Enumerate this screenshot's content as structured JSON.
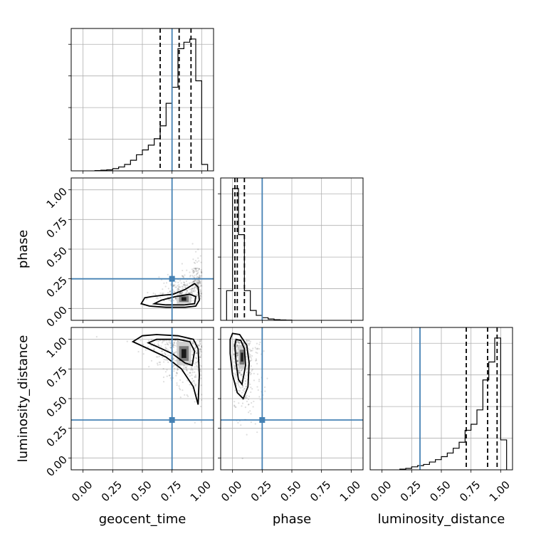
{
  "chart_data": {
    "type": "corner",
    "parameters": [
      "geocent_time",
      "phase",
      "luminosity_distance"
    ],
    "range": [
      -0.1,
      1.1
    ],
    "tick_values": [
      0.0,
      0.25,
      0.5,
      0.75,
      1.0
    ],
    "tick_labels": [
      "0.00",
      "0.25",
      "0.50",
      "0.75",
      "1.00"
    ],
    "truths": {
      "geocent_time": 0.75,
      "phase": 0.25,
      "luminosity_distance": 0.32
    },
    "quantiles": {
      "geocent_time": [
        0.65,
        0.81,
        0.91
      ],
      "phase": [
        0.02,
        0.04,
        0.1
      ],
      "luminosity_distance": [
        0.71,
        0.89,
        0.97
      ]
    },
    "histograms": {
      "geocent_time": {
        "bin_edges": [
          0.1,
          0.15,
          0.2,
          0.25,
          0.3,
          0.35,
          0.4,
          0.45,
          0.5,
          0.55,
          0.6,
          0.65,
          0.7,
          0.75,
          0.8,
          0.85,
          0.9,
          0.95,
          1.0,
          1.05
        ],
        "counts": [
          0.1,
          0.2,
          0.3,
          0.7,
          1.2,
          2.0,
          3.3,
          5.0,
          6.5,
          8.0,
          10.0,
          14.0,
          21.0,
          26.0,
          38.0,
          40.0,
          41.0,
          28.0,
          2.0
        ]
      },
      "phase": {
        "bin_edges": [
          -0.05,
          0.0,
          0.05,
          0.1,
          0.15,
          0.2,
          0.25,
          0.3,
          0.35,
          0.4,
          0.45,
          0.5
        ],
        "counts": [
          9.0,
          40.0,
          26.0,
          9.0,
          3.0,
          1.5,
          0.8,
          0.4,
          0.2,
          0.1,
          0.05
        ]
      },
      "luminosity_distance": {
        "bin_edges": [
          0.15,
          0.2,
          0.25,
          0.3,
          0.35,
          0.4,
          0.45,
          0.5,
          0.55,
          0.6,
          0.65,
          0.7,
          0.75,
          0.8,
          0.85,
          0.9,
          0.95,
          1.0,
          1.05
        ],
        "counts": [
          0.5,
          1.2,
          2.5,
          3.5,
          4.5,
          6.5,
          8.5,
          11.0,
          14.0,
          18.0,
          23.0,
          33.0,
          38.0,
          50.0,
          75.0,
          90.0,
          110.0,
          25.0
        ]
      }
    },
    "joint": {
      "phase_vs_geocent_time": {
        "sample_center": [
          0.85,
          0.08
        ],
        "contours": [
          [
            [
              0.49,
              0.04
            ],
            [
              0.52,
              0.09
            ],
            [
              0.58,
              0.1
            ],
            [
              0.66,
              0.11
            ],
            [
              0.76,
              0.12
            ],
            [
              0.86,
              0.16
            ],
            [
              0.94,
              0.21
            ],
            [
              0.97,
              0.18
            ],
            [
              0.98,
              0.07
            ],
            [
              0.95,
              0.02
            ],
            [
              0.86,
              0.01
            ],
            [
              0.7,
              0.01
            ],
            [
              0.56,
              0.02
            ],
            [
              0.49,
              0.04
            ]
          ],
          [
            [
              0.6,
              0.04
            ],
            [
              0.66,
              0.07
            ],
            [
              0.78,
              0.1
            ],
            [
              0.9,
              0.12
            ],
            [
              0.95,
              0.1
            ],
            [
              0.94,
              0.04
            ],
            [
              0.85,
              0.03
            ],
            [
              0.7,
              0.03
            ],
            [
              0.6,
              0.04
            ]
          ]
        ]
      },
      "luminosity_distance_vs_geocent_time": {
        "sample_center": [
          0.85,
          0.88
        ],
        "contours": [
          [
            [
              0.42,
              0.98
            ],
            [
              0.5,
              1.03
            ],
            [
              0.62,
              1.04
            ],
            [
              0.8,
              1.03
            ],
            [
              0.93,
              1.0
            ],
            [
              0.97,
              0.92
            ],
            [
              0.98,
              0.7
            ],
            [
              0.97,
              0.45
            ],
            [
              0.93,
              0.6
            ],
            [
              0.83,
              0.75
            ],
            [
              0.7,
              0.85
            ],
            [
              0.55,
              0.92
            ],
            [
              0.42,
              0.98
            ]
          ],
          [
            [
              0.55,
              0.97
            ],
            [
              0.62,
              1.0
            ],
            [
              0.8,
              1.0
            ],
            [
              0.9,
              0.98
            ],
            [
              0.94,
              0.9
            ],
            [
              0.92,
              0.78
            ],
            [
              0.86,
              0.8
            ],
            [
              0.75,
              0.88
            ],
            [
              0.62,
              0.94
            ],
            [
              0.55,
              0.97
            ]
          ]
        ]
      },
      "luminosity_distance_vs_phase": {
        "sample_center": [
          0.08,
          0.85
        ],
        "contours": [
          [
            [
              -0.02,
              1.0
            ],
            [
              0.0,
              1.05
            ],
            [
              0.06,
              1.04
            ],
            [
              0.12,
              0.95
            ],
            [
              0.14,
              0.8
            ],
            [
              0.13,
              0.6
            ],
            [
              0.09,
              0.5
            ],
            [
              0.04,
              0.55
            ],
            [
              0.0,
              0.7
            ],
            [
              -0.02,
              0.88
            ],
            [
              -0.02,
              1.0
            ]
          ],
          [
            [
              0.02,
              0.95
            ],
            [
              0.03,
              1.0
            ],
            [
              0.07,
              0.99
            ],
            [
              0.1,
              0.92
            ],
            [
              0.11,
              0.78
            ],
            [
              0.08,
              0.62
            ],
            [
              0.05,
              0.66
            ],
            [
              0.03,
              0.8
            ],
            [
              0.02,
              0.95
            ]
          ]
        ]
      }
    }
  }
}
